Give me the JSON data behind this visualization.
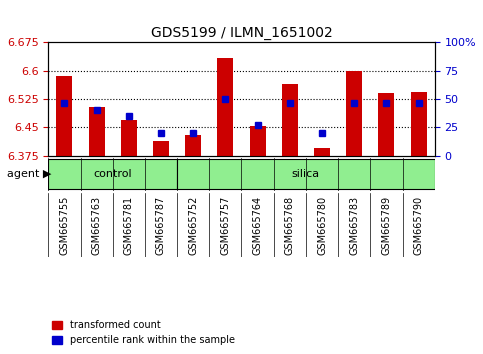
{
  "title": "GDS5199 / ILMN_1651002",
  "samples": [
    "GSM665755",
    "GSM665763",
    "GSM665781",
    "GSM665787",
    "GSM665752",
    "GSM665757",
    "GSM665764",
    "GSM665768",
    "GSM665780",
    "GSM665783",
    "GSM665789",
    "GSM665790"
  ],
  "groups": [
    "control",
    "control",
    "control",
    "control",
    "silica",
    "silica",
    "silica",
    "silica",
    "silica",
    "silica",
    "silica",
    "silica"
  ],
  "transformed_count": [
    6.585,
    6.505,
    6.47,
    6.415,
    6.43,
    6.635,
    6.455,
    6.565,
    6.395,
    6.6,
    6.54,
    6.545
  ],
  "percentile_rank": [
    47,
    40,
    35,
    20,
    20,
    50,
    27,
    47,
    20,
    47,
    47,
    47
  ],
  "ymin": 6.375,
  "ymax": 6.675,
  "yticks": [
    6.375,
    6.45,
    6.525,
    6.6,
    6.675
  ],
  "ytick_labels": [
    "6.375",
    "6.45",
    "6.525",
    "6.6",
    "6.675"
  ],
  "right_yticks": [
    0,
    25,
    50,
    75,
    100
  ],
  "right_ytick_labels": [
    "0",
    "25",
    "50",
    "75",
    "100%"
  ],
  "bar_color": "#cc0000",
  "dot_color": "#0000cc",
  "bar_width": 0.5,
  "base_value": 6.375,
  "control_color": "#90ee90",
  "silica_color": "#90ee90",
  "group_bar_color": "#90ee90",
  "xlabel_color": "#cc0000",
  "ylabel_color": "#cc0000",
  "right_ylabel_color": "#0000cc",
  "background_color": "#ffffff",
  "plot_bg": "#ffffff",
  "tick_area_bg": "#cccccc"
}
